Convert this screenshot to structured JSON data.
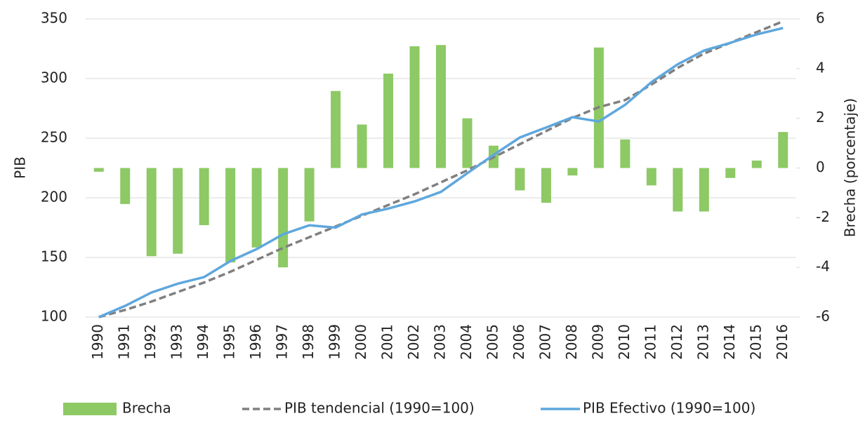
{
  "chart_data": {
    "type": "combo",
    "categories": [
      "1990",
      "1991",
      "1992",
      "1993",
      "1994",
      "1995",
      "1996",
      "1997",
      "1998",
      "1999",
      "2000",
      "2001",
      "2002",
      "2003",
      "2004",
      "2005",
      "2006",
      "2007",
      "2008",
      "2009",
      "2010",
      "2011",
      "2012",
      "2013",
      "2014",
      "2015",
      "2016"
    ],
    "ylabel": "PIB",
    "y2label": "Brecha (porcentaje)",
    "ylim": [
      100,
      350
    ],
    "yticks": [
      100,
      150,
      200,
      250,
      300,
      350
    ],
    "y2lim": [
      -6,
      6
    ],
    "y2ticks": [
      -6,
      -4,
      -2,
      0,
      2,
      4,
      6
    ],
    "grid": true,
    "legend": "bottom",
    "series": [
      {
        "name": "Brecha",
        "type": "bar",
        "axis": "y2",
        "color": "#8dc965",
        "values": [
          -0.15,
          -1.45,
          -3.55,
          -3.45,
          -2.3,
          -3.8,
          -3.2,
          -4.0,
          -2.15,
          3.1,
          1.75,
          3.8,
          4.9,
          4.95,
          2.0,
          0.9,
          -0.9,
          -1.4,
          -0.3,
          4.85,
          1.15,
          -0.7,
          -1.75,
          -1.75,
          -0.4,
          0.3,
          1.45
        ]
      },
      {
        "name": "PIB tendencial (1990=100)",
        "type": "line",
        "style": "dashed",
        "color": "#808080",
        "values": [
          100,
          106,
          113,
          121,
          129,
          138,
          148,
          158,
          167,
          176,
          185,
          194,
          203,
          213,
          223,
          234,
          245,
          256,
          267,
          276,
          282,
          295,
          309,
          321,
          330,
          339,
          348
        ]
      },
      {
        "name": "PIB Efectivo (1990=100)",
        "type": "line",
        "style": "solid",
        "color": "#5ea7dd",
        "values": [
          100,
          109.4,
          120.6,
          128,
          133.5,
          147,
          157,
          169.4,
          177,
          175,
          186,
          191,
          197,
          205,
          220.6,
          236,
          250.6,
          259,
          267.6,
          264,
          278,
          297,
          312,
          323.5,
          330,
          337,
          342.4
        ]
      }
    ]
  }
}
